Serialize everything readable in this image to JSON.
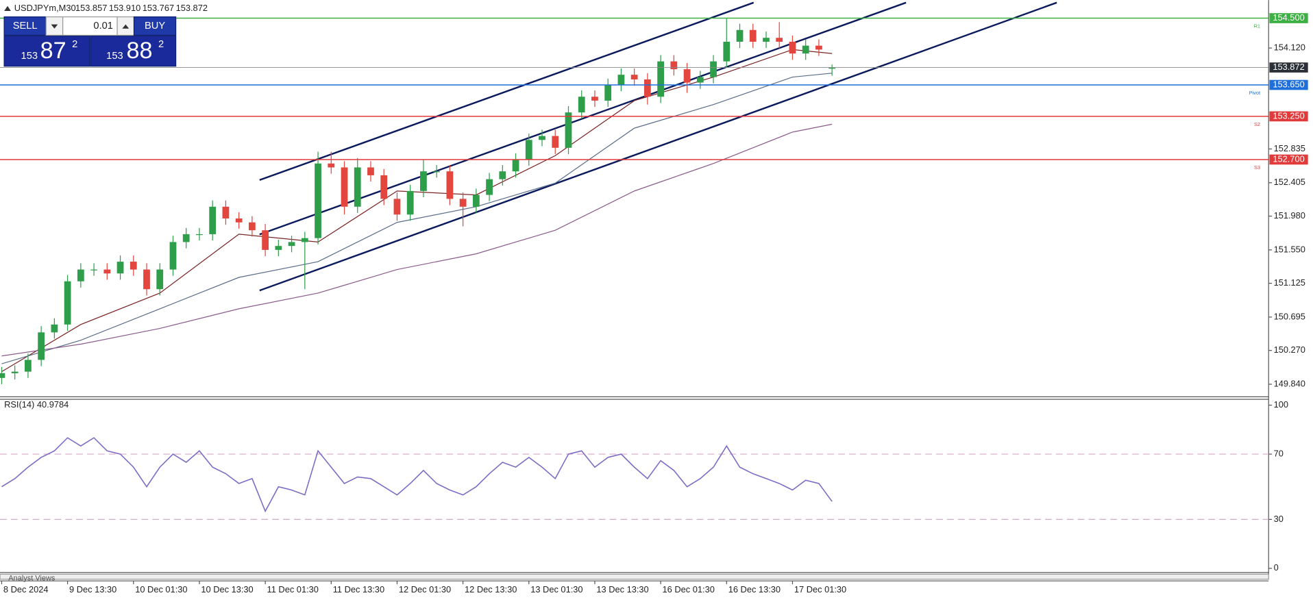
{
  "header": {
    "symbol": "USDJPYm,M30"
  },
  "trade_panel": {
    "sell": "SELL",
    "buy": "BUY",
    "volume": "0.01",
    "sell_price": {
      "big": "153",
      "main": "87",
      "small": "2"
    },
    "buy_price": {
      "big": "153",
      "main": "88",
      "small": "2"
    }
  },
  "chart_data": [
    {
      "type": "candlestick",
      "title": "USDJPYm,M30",
      "title_values": [
        "153.857",
        "153.910",
        "153.767",
        "153.872"
      ],
      "categories": [
        "8 Dec 2024",
        null,
        null,
        null,
        null,
        "9 Dec 13:30",
        null,
        null,
        null,
        null,
        "10 Dec 01:30",
        null,
        null,
        null,
        null,
        "10 Dec 13:30",
        null,
        null,
        null,
        null,
        "11 Dec 01:30",
        null,
        null,
        null,
        null,
        "11 Dec 13:30",
        null,
        null,
        null,
        null,
        "12 Dec 01:30",
        null,
        null,
        null,
        null,
        "12 Dec 13:30",
        null,
        null,
        null,
        null,
        "13 Dec 01:30",
        null,
        null,
        null,
        null,
        "13 Dec 13:30",
        null,
        null,
        null,
        null,
        "16 Dec 01:30",
        null,
        null,
        null,
        null,
        "16 Dec 13:30",
        null,
        null,
        null,
        null,
        "17 Dec 01:30",
        null,
        null,
        null
      ],
      "open": [
        149.92,
        149.98,
        150.0,
        150.15,
        150.5,
        150.6,
        151.15,
        151.3,
        151.3,
        151.25,
        151.4,
        151.3,
        151.05,
        151.3,
        151.65,
        151.75,
        151.75,
        152.1,
        151.95,
        151.9,
        151.8,
        151.55,
        151.6,
        151.65,
        151.7,
        152.65,
        152.6,
        152.1,
        152.6,
        152.5,
        152.2,
        152.0,
        152.3,
        152.55,
        152.55,
        152.2,
        152.1,
        152.25,
        152.45,
        152.55,
        152.7,
        152.95,
        153.0,
        152.85,
        153.3,
        153.5,
        153.45,
        153.65,
        153.78,
        153.72,
        153.5,
        153.95,
        153.85,
        153.68,
        153.75,
        153.95,
        154.2,
        154.35,
        154.2,
        154.25,
        154.2,
        154.05,
        154.15,
        153.857
      ],
      "high": [
        150.06,
        150.08,
        150.23,
        150.58,
        150.68,
        151.23,
        151.38,
        151.38,
        151.38,
        151.48,
        151.48,
        151.38,
        151.38,
        151.73,
        151.83,
        151.83,
        152.18,
        152.18,
        152.03,
        151.98,
        151.88,
        151.68,
        151.73,
        151.78,
        152.8,
        152.8,
        152.68,
        152.72,
        152.68,
        152.58,
        152.28,
        152.38,
        152.7,
        152.63,
        152.63,
        152.28,
        152.33,
        152.53,
        152.63,
        152.78,
        153.03,
        153.08,
        153.08,
        153.38,
        153.58,
        153.58,
        153.73,
        153.86,
        153.86,
        153.8,
        154.03,
        154.03,
        153.93,
        153.83,
        154.03,
        154.5,
        154.43,
        154.43,
        154.33,
        154.45,
        154.28,
        154.23,
        154.23,
        153.91
      ],
      "low": [
        149.84,
        149.9,
        149.92,
        150.07,
        150.42,
        150.52,
        151.07,
        151.22,
        151.17,
        151.17,
        151.22,
        150.97,
        150.97,
        151.22,
        151.57,
        151.67,
        151.67,
        151.87,
        151.82,
        151.72,
        151.47,
        151.47,
        151.52,
        151.05,
        151.62,
        152.52,
        152.0,
        152.02,
        152.42,
        152.12,
        151.92,
        151.92,
        152.22,
        152.47,
        152.12,
        151.85,
        152.02,
        152.17,
        152.37,
        152.47,
        152.62,
        152.87,
        152.77,
        152.77,
        153.22,
        153.37,
        153.37,
        153.57,
        153.64,
        153.4,
        153.42,
        153.77,
        153.55,
        153.6,
        153.67,
        153.87,
        154.12,
        154.12,
        154.12,
        154.12,
        153.97,
        153.97,
        154.02,
        153.767
      ],
      "close": [
        149.98,
        150.0,
        150.15,
        150.5,
        150.6,
        151.15,
        151.3,
        151.3,
        151.25,
        151.4,
        151.3,
        151.05,
        151.3,
        151.65,
        151.75,
        151.75,
        152.1,
        151.95,
        151.9,
        151.8,
        151.55,
        151.6,
        151.65,
        151.7,
        152.65,
        152.6,
        152.1,
        152.6,
        152.5,
        152.2,
        152.0,
        152.3,
        152.55,
        152.55,
        152.2,
        152.1,
        152.25,
        152.45,
        152.55,
        152.7,
        152.95,
        153.0,
        152.85,
        153.3,
        153.5,
        153.45,
        153.65,
        153.78,
        153.72,
        153.5,
        153.95,
        153.85,
        153.68,
        153.75,
        153.95,
        154.2,
        154.35,
        154.2,
        154.25,
        154.2,
        154.05,
        154.15,
        154.1,
        153.872
      ],
      "up_color": "#2e9e4a",
      "down_color": "#e2463e",
      "ma_x": [
        0,
        6,
        12,
        18,
        24,
        30,
        36,
        42,
        48,
        54,
        60,
        63
      ],
      "ma": [
        {
          "color": "#7a2323",
          "values": [
            150.0,
            150.6,
            151.0,
            151.75,
            151.65,
            152.3,
            152.25,
            152.75,
            153.45,
            153.75,
            154.1,
            154.05
          ]
        },
        {
          "color": "#5a6d8a",
          "values": [
            150.1,
            150.4,
            150.8,
            151.2,
            151.4,
            151.9,
            152.1,
            152.4,
            153.1,
            153.4,
            153.75,
            153.8
          ]
        },
        {
          "color": "#8a5a8a",
          "values": [
            150.2,
            150.35,
            150.55,
            150.8,
            151.0,
            151.3,
            151.5,
            151.8,
            152.3,
            152.65,
            153.05,
            153.15
          ]
        }
      ],
      "levels": [
        {
          "name": "R1",
          "value": 154.5,
          "label": "154.500",
          "color": "#3cb043"
        },
        {
          "name": "Pivot",
          "value": 153.65,
          "label": "153.650",
          "color": "#1e6fd9"
        },
        {
          "name": "S2",
          "value": 153.25,
          "label": "153.250",
          "color": "#e03a3a"
        },
        {
          "name": "S3",
          "value": 152.7,
          "label": "152.700",
          "color": "#e03a3a"
        }
      ],
      "last_price": {
        "value": 153.872,
        "color": "#2b2f36"
      },
      "ylim": [
        149.68,
        154.73
      ],
      "yticks": [
        {
          "value": 149.84,
          "label": "149.840"
        },
        {
          "value": 150.27,
          "label": "150.270"
        },
        150.695,
        151.125,
        {
          "value": 151.55,
          "label": "151.550"
        },
        {
          "value": 151.98,
          "label": "151.980"
        },
        152.405,
        152.835,
        {
          "value": 154.12,
          "label": "154.120"
        }
      ]
    },
    {
      "type": "line",
      "title": "RSI(14) 40.9784",
      "color": "#7d6bc4",
      "values": [
        50,
        55,
        62,
        68,
        72,
        80,
        75,
        80,
        72,
        70,
        62,
        50,
        62,
        70,
        65,
        72,
        62,
        58,
        52,
        55,
        35,
        50,
        48,
        45,
        72,
        62,
        52,
        56,
        55,
        50,
        45,
        52,
        60,
        52,
        48,
        45,
        50,
        58,
        65,
        62,
        68,
        62,
        55,
        70,
        72,
        62,
        68,
        70,
        62,
        55,
        66,
        60,
        50,
        55,
        62,
        75,
        62,
        58,
        55,
        52,
        48,
        54,
        52,
        40.9784
      ],
      "levels": [
        70,
        30
      ],
      "level_color": "#d8a6c6",
      "ylim": [
        0,
        100
      ],
      "yticks": [
        0,
        30,
        70,
        100
      ]
    }
  ],
  "footer": {
    "tab": "Analyst Views"
  }
}
